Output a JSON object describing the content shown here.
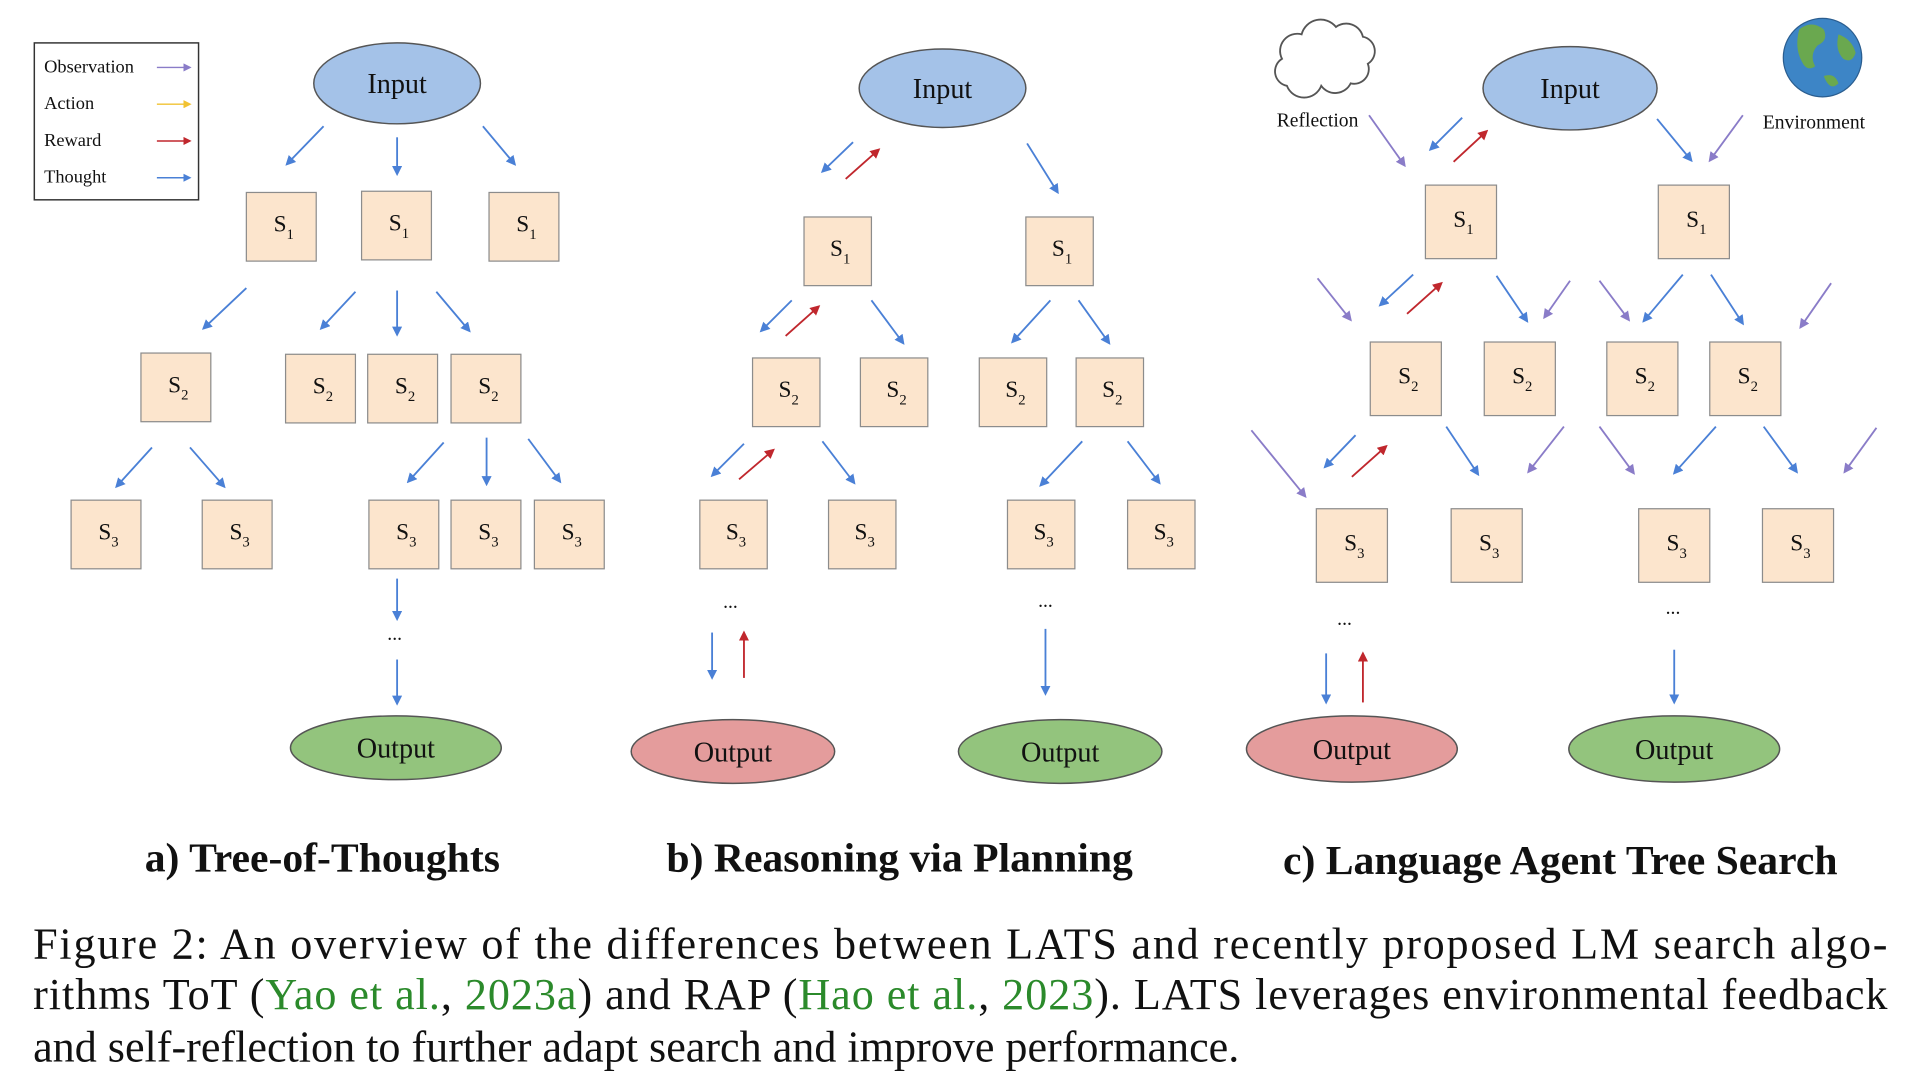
{
  "figure": {
    "legend": {
      "items": [
        {
          "label": "Observation",
          "color": "#8a7cc8"
        },
        {
          "label": "Action",
          "color": "#f1c232"
        },
        {
          "label": "Reward",
          "color": "#c0272d"
        },
        {
          "label": "Thought",
          "color": "#4a80d6"
        }
      ]
    },
    "colors": {
      "input_fill": "#a4c2e8",
      "state_fill": "#fce5cd",
      "node_stroke": "#555555"
    },
    "panels": [
      {
        "title": "a) Tree-of-Thoughts",
        "input": "Input",
        "states": [
          {
            "letter": "S",
            "index": "1"
          },
          {
            "letter": "S",
            "index": "1"
          },
          {
            "letter": "S",
            "index": "1"
          },
          {
            "letter": "S",
            "index": "2"
          },
          {
            "letter": "S",
            "index": "2"
          },
          {
            "letter": "S",
            "index": "2"
          },
          {
            "letter": "S",
            "index": "2"
          },
          {
            "letter": "S",
            "index": "3"
          },
          {
            "letter": "S",
            "index": "3"
          },
          {
            "letter": "S",
            "index": "3"
          },
          {
            "letter": "S",
            "index": "3"
          },
          {
            "letter": "S",
            "index": "3"
          }
        ],
        "ellipses": [
          "..."
        ],
        "outputs": [
          {
            "label": "Output",
            "color": "#93c47d"
          }
        ]
      },
      {
        "title": "b) Reasoning via Planning",
        "input": "Input",
        "states": [
          {
            "letter": "S",
            "index": "1"
          },
          {
            "letter": "S",
            "index": "1"
          },
          {
            "letter": "S",
            "index": "2"
          },
          {
            "letter": "S",
            "index": "2"
          },
          {
            "letter": "S",
            "index": "2"
          },
          {
            "letter": "S",
            "index": "2"
          },
          {
            "letter": "S",
            "index": "3"
          },
          {
            "letter": "S",
            "index": "3"
          },
          {
            "letter": "S",
            "index": "3"
          },
          {
            "letter": "S",
            "index": "3"
          }
        ],
        "ellipses": [
          "...",
          "..."
        ],
        "outputs": [
          {
            "label": "Output",
            "color": "#e49c9c"
          },
          {
            "label": "Output",
            "color": "#93c47d"
          }
        ]
      },
      {
        "title": "c) Language Agent Tree Search",
        "input": "Input",
        "reflection": "Reflection",
        "environment": "Environment",
        "reflection_icon": "cloud-icon",
        "environment_icon": "globe-icon",
        "states": [
          {
            "letter": "S",
            "index": "1"
          },
          {
            "letter": "S",
            "index": "1"
          },
          {
            "letter": "S",
            "index": "2"
          },
          {
            "letter": "S",
            "index": "2"
          },
          {
            "letter": "S",
            "index": "2"
          },
          {
            "letter": "S",
            "index": "2"
          },
          {
            "letter": "S",
            "index": "3"
          },
          {
            "letter": "S",
            "index": "3"
          },
          {
            "letter": "S",
            "index": "3"
          },
          {
            "letter": "S",
            "index": "3"
          }
        ],
        "ellipses": [
          "...",
          "..."
        ],
        "outputs": [
          {
            "label": "Output",
            "color": "#e49c9c"
          },
          {
            "label": "Output",
            "color": "#93c47d"
          }
        ]
      }
    ]
  },
  "caption": {
    "link_color": "#2b8a2b",
    "lines": [
      [
        {
          "text": "Figure 2: An overview of the differences between LATS and recently proposed LM search algo-"
        }
      ],
      [
        {
          "text": "rithms ToT ("
        },
        {
          "text": "Yao et al.",
          "link": true
        },
        {
          "text": ", "
        },
        {
          "text": "2023a",
          "link": true
        },
        {
          "text": ") and RAP ("
        },
        {
          "text": "Hao et al.",
          "link": true
        },
        {
          "text": ", "
        },
        {
          "text": "2023",
          "link": true
        },
        {
          "text": "). LATS leverages environmental feedback"
        }
      ],
      [
        {
          "text": "and self-reflection to further adapt search and improve performance."
        }
      ]
    ]
  }
}
